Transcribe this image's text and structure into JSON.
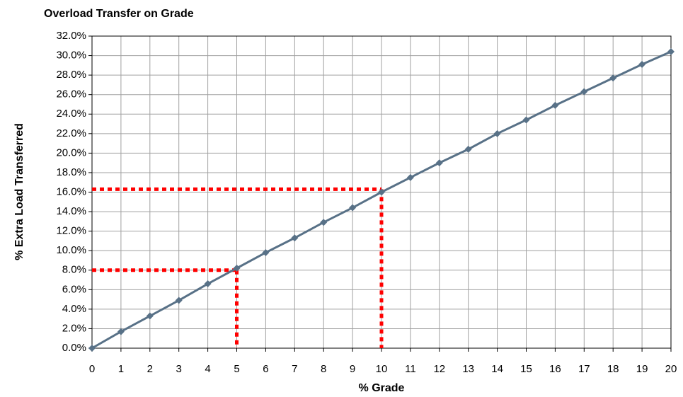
{
  "chart_data": {
    "type": "line",
    "title": "Overload Transfer on Grade",
    "x_label": "% Grade",
    "y_label": "% Extra Load Transferred",
    "x": [
      0,
      1,
      2,
      3,
      4,
      5,
      6,
      7,
      8,
      9,
      10,
      11,
      12,
      13,
      14,
      15,
      16,
      17,
      18,
      19,
      20
    ],
    "series": [
      {
        "color": "#587187",
        "values": [
          0,
          1.7,
          3.3,
          4.9,
          6.6,
          8.2,
          9.8,
          11.3,
          12.9,
          14.4,
          16.0,
          17.5,
          19.0,
          20.4,
          22.0,
          23.4,
          24.9,
          26.3,
          27.7,
          29.1,
          30.4
        ]
      }
    ],
    "xlim": [
      0,
      20
    ],
    "xticks": [
      0,
      1,
      2,
      3,
      4,
      5,
      6,
      7,
      8,
      9,
      10,
      11,
      12,
      13,
      14,
      15,
      16,
      17,
      18,
      19,
      20
    ],
    "ylim": [
      0,
      32
    ],
    "yticks": [
      {
        "value": 0,
        "label": "0.0%"
      },
      {
        "value": 2,
        "label": "2.0%"
      },
      {
        "value": 4,
        "label": "4.0%"
      },
      {
        "value": 6,
        "label": "6.0%"
      },
      {
        "value": 8,
        "label": "8.0%"
      },
      {
        "value": 10,
        "label": "10.0%"
      },
      {
        "value": 12,
        "label": "12.0%"
      },
      {
        "value": 14,
        "label": "14.0%"
      },
      {
        "value": 16,
        "label": "16.0%"
      },
      {
        "value": 18,
        "label": "18.0%"
      },
      {
        "value": 20,
        "label": "20.0%"
      },
      {
        "value": 22,
        "label": "22.0%"
      },
      {
        "value": 24,
        "label": "24.0%"
      },
      {
        "value": 26,
        "label": "26.0%"
      },
      {
        "value": 28,
        "label": "28.0%"
      },
      {
        "value": 30,
        "label": "30.0%"
      },
      {
        "value": 32,
        "label": "32.0%"
      }
    ],
    "grid": true,
    "reference_lines": [
      {
        "x": 5,
        "y": 8,
        "color": "#ff0000"
      },
      {
        "x": 10,
        "y": 16.3,
        "color": "#ff0000"
      }
    ]
  }
}
